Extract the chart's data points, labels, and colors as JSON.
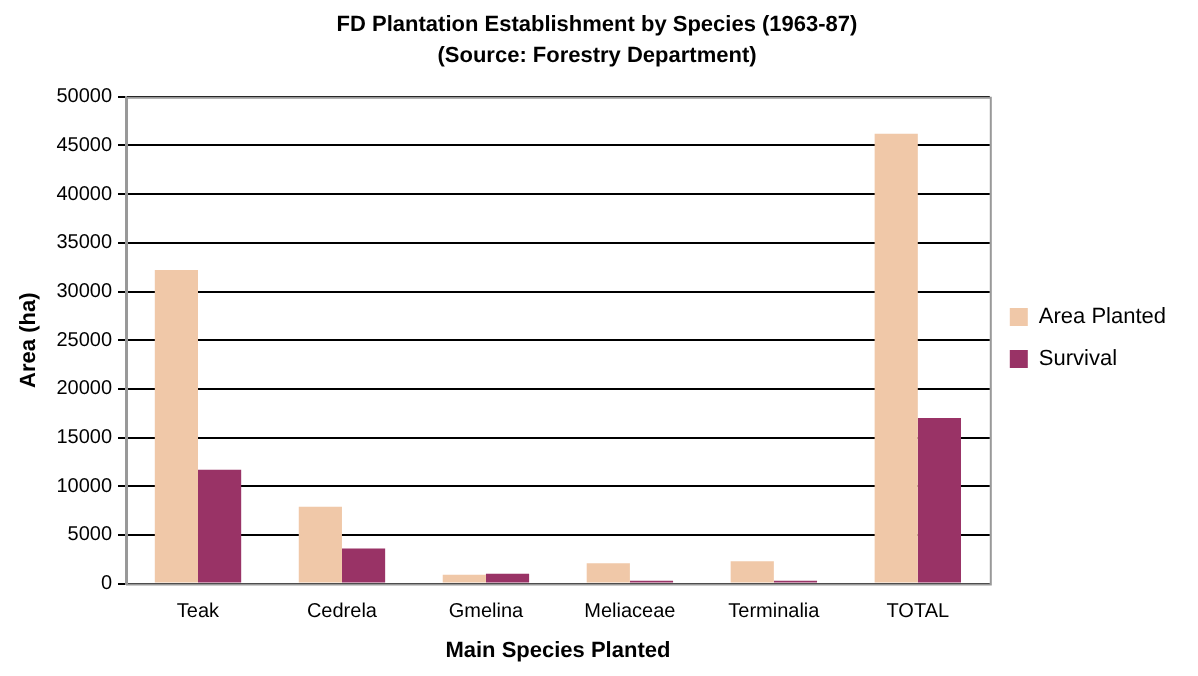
{
  "chart_data": {
    "type": "bar",
    "title": "FD Plantation Establishment by Species (1963-87)",
    "subtitle": "(Source: Forestry Department)",
    "xlabel": "Main Species Planted",
    "ylabel": "Area (ha)",
    "categories": [
      "Teak",
      "Cedrela",
      "Gmelina",
      "Meliaceae",
      "Terminalia",
      "TOTAL"
    ],
    "series": [
      {
        "name": "Area Planted",
        "color": "#f0c8a8",
        "values": [
          32200,
          7900,
          900,
          2100,
          2300,
          46200
        ]
      },
      {
        "name": "Survival",
        "color": "#993366",
        "values": [
          11700,
          3600,
          1000,
          300,
          300,
          17000
        ]
      }
    ],
    "ylim": [
      0,
      50000
    ],
    "yticks": [
      0,
      5000,
      10000,
      15000,
      20000,
      25000,
      30000,
      35000,
      40000,
      45000,
      50000
    ],
    "grid": "y",
    "legend": "right"
  }
}
